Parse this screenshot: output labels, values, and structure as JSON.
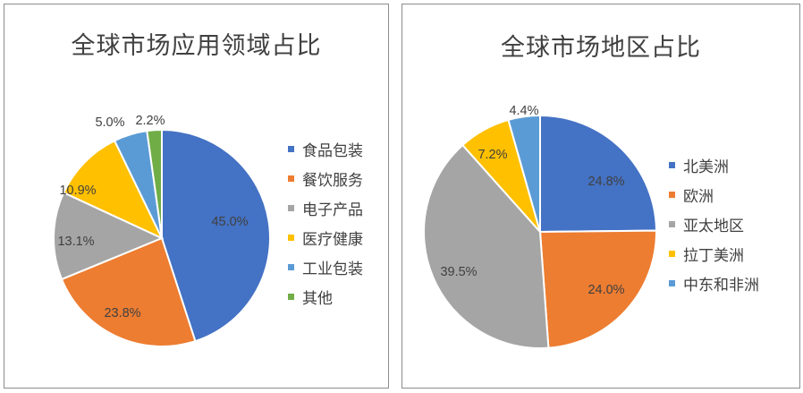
{
  "charts": [
    {
      "title": "全球市场应用领域占比",
      "colors": [
        "#4472C4",
        "#ED7D31",
        "#A5A5A5",
        "#FFC000",
        "#5B9BD5",
        "#70AD47"
      ]
    },
    {
      "title": "全球市场地区占比",
      "colors": [
        "#4472C4",
        "#ED7D31",
        "#A5A5A5",
        "#FFC000",
        "#5B9BD5"
      ]
    }
  ],
  "chart_data": [
    {
      "type": "pie",
      "title": "全球市场应用领域占比",
      "categories": [
        "食品包装",
        "餐饮服务",
        "电子产品",
        "医疗健康",
        "工业包装",
        "其他"
      ],
      "values": [
        45.0,
        23.8,
        13.1,
        10.9,
        5.0,
        2.2
      ],
      "value_labels": [
        "45.0%",
        "23.8%",
        "13.1%",
        "10.9%",
        "5.0%",
        "2.2%"
      ],
      "legend": "right"
    },
    {
      "type": "pie",
      "title": "全球市场地区占比",
      "categories": [
        "北美洲",
        "欧洲",
        "亚太地区",
        "拉丁美洲",
        "中东和非洲"
      ],
      "values": [
        24.8,
        24.0,
        39.5,
        7.2,
        4.4
      ],
      "value_labels": [
        "24.8%",
        "24.0%",
        "39.5%",
        "7.2%",
        "4.4%"
      ],
      "legend": "right"
    }
  ]
}
